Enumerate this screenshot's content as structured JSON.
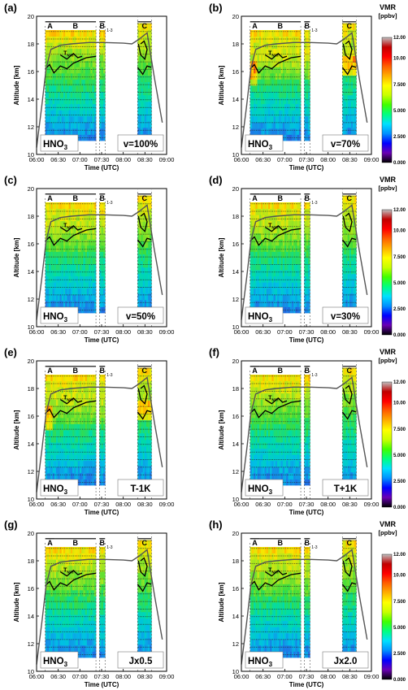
{
  "chart_data": {
    "type": "heatmap",
    "species": "HNO",
    "species_subscript": "3",
    "x_tick_labels": [
      "06:00",
      "06:30",
      "07:00",
      "07:30",
      "08:00",
      "08:30",
      "09:00"
    ],
    "x_range_hours": [
      6.0,
      9.0
    ],
    "y_tick_labels": [
      "10",
      "12",
      "14",
      "16",
      "18",
      "20"
    ],
    "y_range_km": [
      10,
      20
    ],
    "xlabel": "Time (UTC)",
    "ylabel": "Altitude [km]",
    "segment_labels": {
      "a": "A",
      "b": "B",
      "b13": "B",
      "b13_sub": "1-3",
      "c": "C"
    },
    "contour_label": "T",
    "contour_label_sub": "NAT",
    "colorbar": {
      "title": "VMR",
      "unit": "[ppbv]",
      "tick_labels": [
        "12.00",
        "10.00",
        "7.500",
        "5.000",
        "2.500",
        "0.000"
      ],
      "range": [
        0,
        12
      ],
      "colors": [
        "#000000",
        "#6a00b4",
        "#0000ff",
        "#0090ff",
        "#00e0ff",
        "#00ff80",
        "#40ff00",
        "#c8ff00",
        "#ffff00",
        "#ffb000",
        "#ff6000",
        "#ff0000",
        "#c00000",
        "#c0c0c0"
      ]
    },
    "panels": [
      {
        "id": "a",
        "letter": "(a)",
        "scenario": "v=100%",
        "hot_spot": false,
        "warm_bias": 0.0
      },
      {
        "id": "b",
        "letter": "(b)",
        "scenario": "v=70%",
        "hot_spot": true,
        "warm_bias": 0.6
      },
      {
        "id": "c",
        "letter": "(c)",
        "scenario": "v=50%",
        "hot_spot": false,
        "warm_bias": 0.3
      },
      {
        "id": "d",
        "letter": "(d)",
        "scenario": "v=30%",
        "hot_spot": false,
        "warm_bias": 0.2
      },
      {
        "id": "e",
        "letter": "(e)",
        "scenario": "T-1K",
        "hot_spot": true,
        "warm_bias": 0.4
      },
      {
        "id": "f",
        "letter": "(f)",
        "scenario": "T+1K",
        "hot_spot": false,
        "warm_bias": 0.0
      },
      {
        "id": "g",
        "letter": "(g)",
        "scenario": "Jx0.5",
        "hot_spot": false,
        "warm_bias": 0.1
      },
      {
        "id": "h",
        "letter": "(h)",
        "scenario": "Jx2.0",
        "hot_spot": false,
        "warm_bias": 0.2
      }
    ],
    "flight_track": [
      [
        6.0,
        10.5
      ],
      [
        6.12,
        13.5
      ],
      [
        6.22,
        16.2
      ],
      [
        6.33,
        17.6
      ],
      [
        6.55,
        17.9
      ],
      [
        6.8,
        18.0
      ],
      [
        7.2,
        18.1
      ],
      [
        7.55,
        18.1
      ],
      [
        8.0,
        18.05
      ],
      [
        8.2,
        18.0
      ],
      [
        8.35,
        18.3
      ],
      [
        8.55,
        18.8
      ],
      [
        8.72,
        15.5
      ],
      [
        8.9,
        12.3
      ]
    ]
  }
}
